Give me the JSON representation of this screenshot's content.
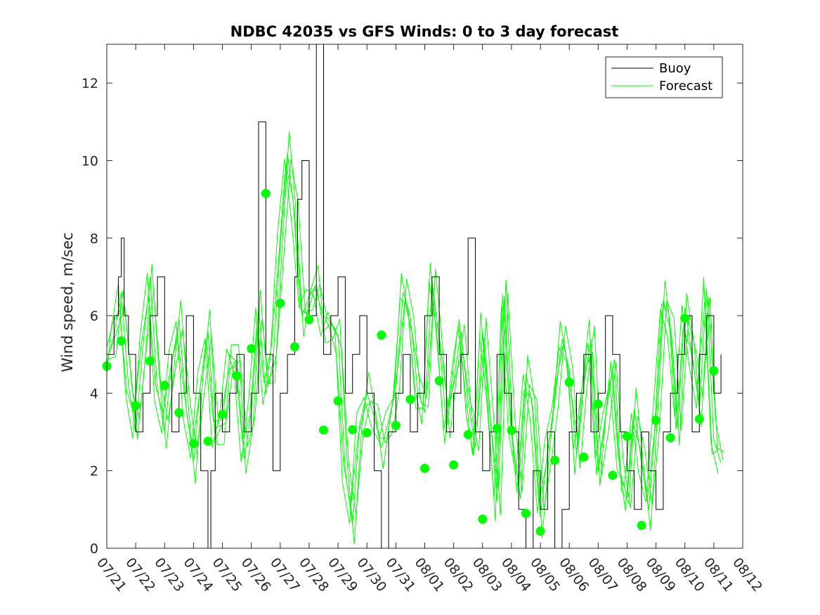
{
  "chart_data": {
    "type": "line",
    "title": "NDBC 42035 vs GFS Winds: 0 to 3 day forecast",
    "xlabel": "",
    "ylabel": "Wind speed, m/sec",
    "ylim": [
      0,
      13
    ],
    "yticks": [
      "0",
      "2",
      "4",
      "6",
      "8",
      "10",
      "12"
    ],
    "xlim": [
      "07/21",
      "08/12"
    ],
    "xticks": [
      "07/21",
      "07/22",
      "07/23",
      "07/24",
      "07/25",
      "07/26",
      "07/27",
      "07/28",
      "07/29",
      "07/30",
      "07/31",
      "08/01",
      "08/02",
      "08/03",
      "08/04",
      "08/05",
      "08/06",
      "08/07",
      "08/08",
      "08/09",
      "08/10",
      "08/11",
      "08/12"
    ],
    "grid": false,
    "legend_position": "top-right",
    "colors": {
      "buoy": "#000000",
      "forecast": "#00ff00",
      "markers": "#00ff00"
    },
    "series": [
      {
        "name": "Buoy",
        "style": "stairs",
        "x_days": [
          0,
          0.25,
          0.4,
          0.5,
          0.6,
          0.75,
          1,
          1.25,
          1.5,
          1.75,
          2,
          2.25,
          2.5,
          2.75,
          3,
          3.25,
          3.5,
          3.6,
          3.75,
          4,
          4.25,
          4.5,
          4.75,
          5,
          5.25,
          5.5,
          5.75,
          6,
          6.25,
          6.5,
          6.6,
          6.75,
          7,
          7.25,
          7.5,
          7.75,
          8,
          8.25,
          8.5,
          8.75,
          9,
          9.25,
          9.5,
          9.75,
          10,
          10.25,
          10.5,
          10.75,
          11,
          11.25,
          11.5,
          11.75,
          12,
          12.25,
          12.5,
          12.75,
          13,
          13.25,
          13.5,
          13.75,
          14,
          14.25,
          14.5,
          14.75,
          15,
          15.25,
          15.5,
          15.75,
          16,
          16.25,
          16.5,
          16.75,
          17,
          17.25,
          17.5,
          17.75,
          18,
          18.25,
          18.5,
          18.75,
          19,
          19.25,
          19.5,
          19.75,
          20,
          20.25,
          20.5,
          20.75,
          21,
          21.25
        ],
        "values": [
          5,
          6,
          7,
          8,
          6,
          5,
          3,
          4,
          6,
          7,
          5,
          3,
          4,
          6,
          4,
          2,
          0,
          2,
          4,
          3,
          4,
          5,
          3,
          4,
          11,
          5,
          2,
          4,
          5,
          7,
          9,
          10,
          6,
          13,
          5,
          6,
          7,
          4,
          5,
          6,
          4,
          2,
          0,
          3,
          4,
          5,
          3,
          4,
          6,
          7,
          5,
          3,
          4,
          5,
          8,
          3,
          2,
          3,
          5,
          4,
          3,
          1,
          0,
          2,
          1,
          3,
          0,
          1,
          3,
          4,
          5,
          3,
          4,
          6,
          5,
          3,
          2,
          1,
          3,
          2,
          1,
          3,
          4,
          5,
          6,
          3,
          5,
          6,
          4,
          5
        ]
      },
      {
        "name": "Forecast",
        "style": "multi-line",
        "x_days": [
          0,
          0.25,
          0.5,
          0.75,
          1,
          1.25,
          1.5,
          1.75,
          2,
          2.25,
          2.5,
          2.75,
          3,
          3.25,
          3.5,
          3.75,
          4,
          4.25,
          4.5,
          4.75,
          5,
          5.25,
          5.5,
          5.75,
          6,
          6.25,
          6.5,
          6.75,
          7,
          7.25,
          7.5,
          7.75,
          8,
          8.25,
          8.5,
          8.75,
          9,
          9.25,
          9.5,
          9.75,
          10,
          10.25,
          10.5,
          10.75,
          11,
          11.25,
          11.5,
          11.75,
          12,
          12.25,
          12.5,
          12.75,
          13,
          13.25,
          13.5,
          13.75,
          14,
          14.25,
          14.5,
          14.75,
          15,
          15.25,
          15.5,
          15.75,
          16,
          16.25,
          16.5,
          16.75,
          17,
          17.25,
          17.5,
          17.75,
          18,
          18.25,
          18.5,
          18.75,
          19,
          19.25,
          19.5,
          19.75,
          20,
          20.25,
          20.5,
          20.75,
          21,
          21.25
        ],
        "values": [
          4.8,
          5.5,
          6.6,
          4.2,
          3.0,
          5.2,
          7.0,
          4.1,
          3.0,
          4.8,
          5.9,
          3.6,
          2.2,
          4.3,
          5.6,
          2.8,
          3.2,
          5.0,
          4.8,
          2.3,
          3.5,
          6.2,
          4.0,
          4.8,
          7.8,
          10.2,
          8.6,
          6.0,
          6.5,
          6.8,
          5.6,
          5.8,
          5.5,
          2.0,
          0.6,
          3.2,
          4.0,
          3.4,
          2.6,
          3.3,
          4.1,
          6.6,
          6.0,
          4.1,
          3.5,
          6.9,
          5.4,
          3.1,
          4.3,
          5.6,
          3.8,
          2.6,
          5.6,
          3.5,
          1.2,
          6.5,
          3.0,
          1.6,
          4.5,
          3.6,
          0.8,
          2.5,
          3.8,
          5.4,
          4.6,
          2.4,
          4.2,
          5.4,
          2.0,
          3.4,
          4.6,
          2.0,
          1.3,
          3.6,
          2.2,
          1.0,
          3.4,
          6.4,
          5.6,
          3.1,
          6.2,
          5.0,
          3.6,
          6.7,
          2.8,
          2.2
        ]
      },
      {
        "name": "",
        "style": "markers",
        "x_days": [
          0,
          0.5,
          1,
          1.5,
          2,
          2.5,
          3,
          3.5,
          4,
          4.5,
          5,
          5.5,
          6,
          6.5,
          7,
          7.5,
          8,
          8.5,
          9,
          9.5,
          10,
          10.5,
          11,
          11.5,
          12,
          12.5,
          13,
          13.5,
          14,
          14.5,
          15,
          15.5,
          16,
          16.5,
          17,
          17.5,
          18,
          18.5,
          19,
          19.5,
          20,
          20.5,
          21
        ],
        "values": [
          4.7,
          5.35,
          3.68,
          4.83,
          4.2,
          3.5,
          2.7,
          2.76,
          3.45,
          4.45,
          5.15,
          9.15,
          6.32,
          5.2,
          5.9,
          3.05,
          3.8,
          3.06,
          2.98,
          5.5,
          3.17,
          3.84,
          2.06,
          4.32,
          2.15,
          2.93,
          0.75,
          3.09,
          3.04,
          0.9,
          0.44,
          2.27,
          4.28,
          2.35,
          3.72,
          1.88,
          2.89,
          0.59,
          3.3,
          2.85,
          5.93,
          3.33,
          4.58
        ]
      }
    ]
  }
}
